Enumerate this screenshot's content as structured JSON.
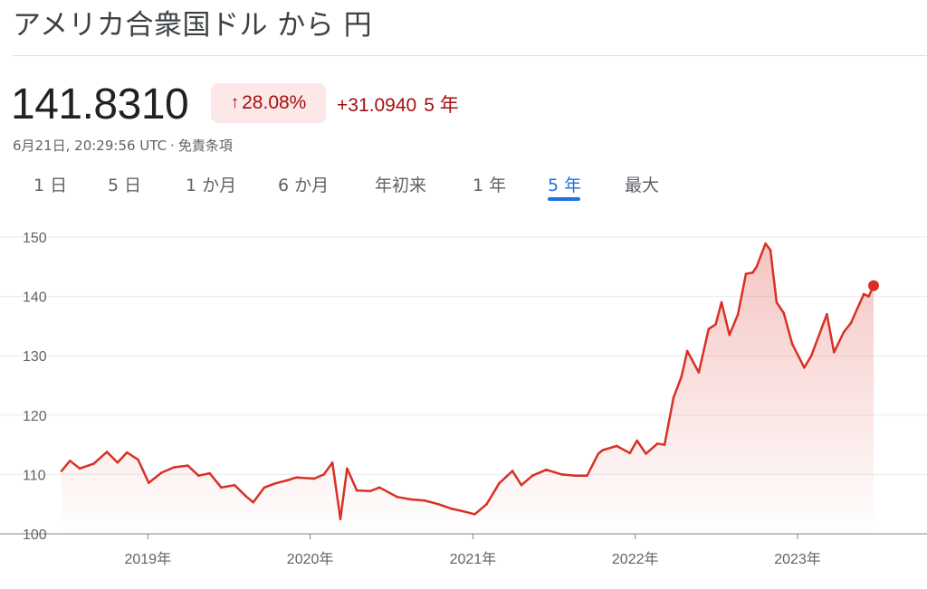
{
  "header": {
    "title": "アメリカ合衆国ドル から 円",
    "price": "141.8310",
    "percent_change": "28.08%",
    "change_arrow": "↑",
    "absolute_change": "+31.0940",
    "change_period": "5 年",
    "timestamp": "6月21日, 20:29:56 UTC",
    "separator": "·",
    "disclaimer": "免責条項"
  },
  "colors": {
    "positive_red": "#a50e0e",
    "badge_bg": "#fce8e6",
    "line": "#d93025",
    "accent_blue": "#1a73e8"
  },
  "tabs": [
    {
      "label": "1 日",
      "active": false
    },
    {
      "label": "5 日",
      "active": false
    },
    {
      "label": "1 か月",
      "active": false
    },
    {
      "label": "6 か月",
      "active": false
    },
    {
      "label": "年初来",
      "active": false
    },
    {
      "label": "1 年",
      "active": false
    },
    {
      "label": "5 年",
      "active": true
    },
    {
      "label": "最大",
      "active": false
    }
  ],
  "chart_data": {
    "type": "area",
    "x_tick_labels": [
      "2019年",
      "2020年",
      "2021年",
      "2022年",
      "2023年"
    ],
    "x_tick_dates": [
      "2019-01-01",
      "2020-01-01",
      "2021-01-01",
      "2022-01-01",
      "2023-01-01"
    ],
    "x_range": [
      "2018-06-21",
      "2023-06-21"
    ],
    "ylim": [
      100,
      150
    ],
    "y_ticks": [
      100,
      110,
      120,
      130,
      140,
      150
    ],
    "grid": true,
    "series": [
      {
        "x": [
          "2018-06-21",
          "2018-07-10",
          "2018-08-01",
          "2018-09-01",
          "2018-10-01",
          "2018-10-25",
          "2018-11-15",
          "2018-12-10",
          "2019-01-03",
          "2019-02-01",
          "2019-03-01",
          "2019-04-01",
          "2019-04-25",
          "2019-05-20",
          "2019-06-15",
          "2019-07-15",
          "2019-08-10",
          "2019-08-26",
          "2019-09-20",
          "2019-10-15",
          "2019-11-10",
          "2019-12-01",
          "2020-01-10",
          "2020-02-01",
          "2020-02-20",
          "2020-03-09",
          "2020-03-24",
          "2020-04-15",
          "2020-05-15",
          "2020-06-05",
          "2020-07-15",
          "2020-08-15",
          "2020-09-15",
          "2020-10-15",
          "2020-11-15",
          "2020-12-10",
          "2021-01-05",
          "2021-02-01",
          "2021-03-01",
          "2021-03-31",
          "2021-04-20",
          "2021-05-15",
          "2021-06-15",
          "2021-07-20",
          "2021-08-20",
          "2021-09-15",
          "2021-10-10",
          "2021-10-20",
          "2021-11-20",
          "2021-12-20",
          "2022-01-05",
          "2022-01-25",
          "2022-02-20",
          "2022-03-08",
          "2022-03-28",
          "2022-04-15",
          "2022-04-28",
          "2022-05-24",
          "2022-06-15",
          "2022-07-01",
          "2022-07-14",
          "2022-08-01",
          "2022-08-20",
          "2022-09-07",
          "2022-09-22",
          "2022-10-01",
          "2022-10-21",
          "2022-11-01",
          "2022-11-15",
          "2022-12-01",
          "2022-12-20",
          "2023-01-16",
          "2023-02-01",
          "2023-03-08",
          "2023-03-24",
          "2023-04-15",
          "2023-05-01",
          "2023-05-30",
          "2023-06-10",
          "2023-06-21"
        ],
        "y": [
          110.6,
          112.3,
          111.0,
          111.8,
          113.8,
          112.0,
          113.7,
          112.5,
          108.6,
          110.3,
          111.2,
          111.5,
          109.8,
          110.2,
          107.8,
          108.2,
          106.3,
          105.3,
          107.8,
          108.5,
          109.0,
          109.5,
          109.3,
          110.0,
          112.0,
          102.5,
          111.0,
          107.3,
          107.2,
          107.8,
          106.2,
          105.8,
          105.6,
          105.0,
          104.2,
          103.8,
          103.3,
          105.0,
          108.5,
          110.6,
          108.2,
          109.8,
          110.8,
          110.0,
          109.8,
          109.8,
          113.5,
          114.1,
          114.8,
          113.6,
          115.7,
          113.5,
          115.2,
          115.0,
          122.9,
          126.5,
          130.8,
          127.2,
          134.5,
          135.3,
          139.0,
          133.5,
          137.0,
          143.8,
          144.0,
          145.0,
          148.9,
          147.8,
          139.0,
          137.2,
          132.0,
          128.0,
          130.0,
          137.0,
          130.6,
          134.0,
          135.5,
          140.4,
          140.0,
          141.8
        ]
      }
    ]
  }
}
